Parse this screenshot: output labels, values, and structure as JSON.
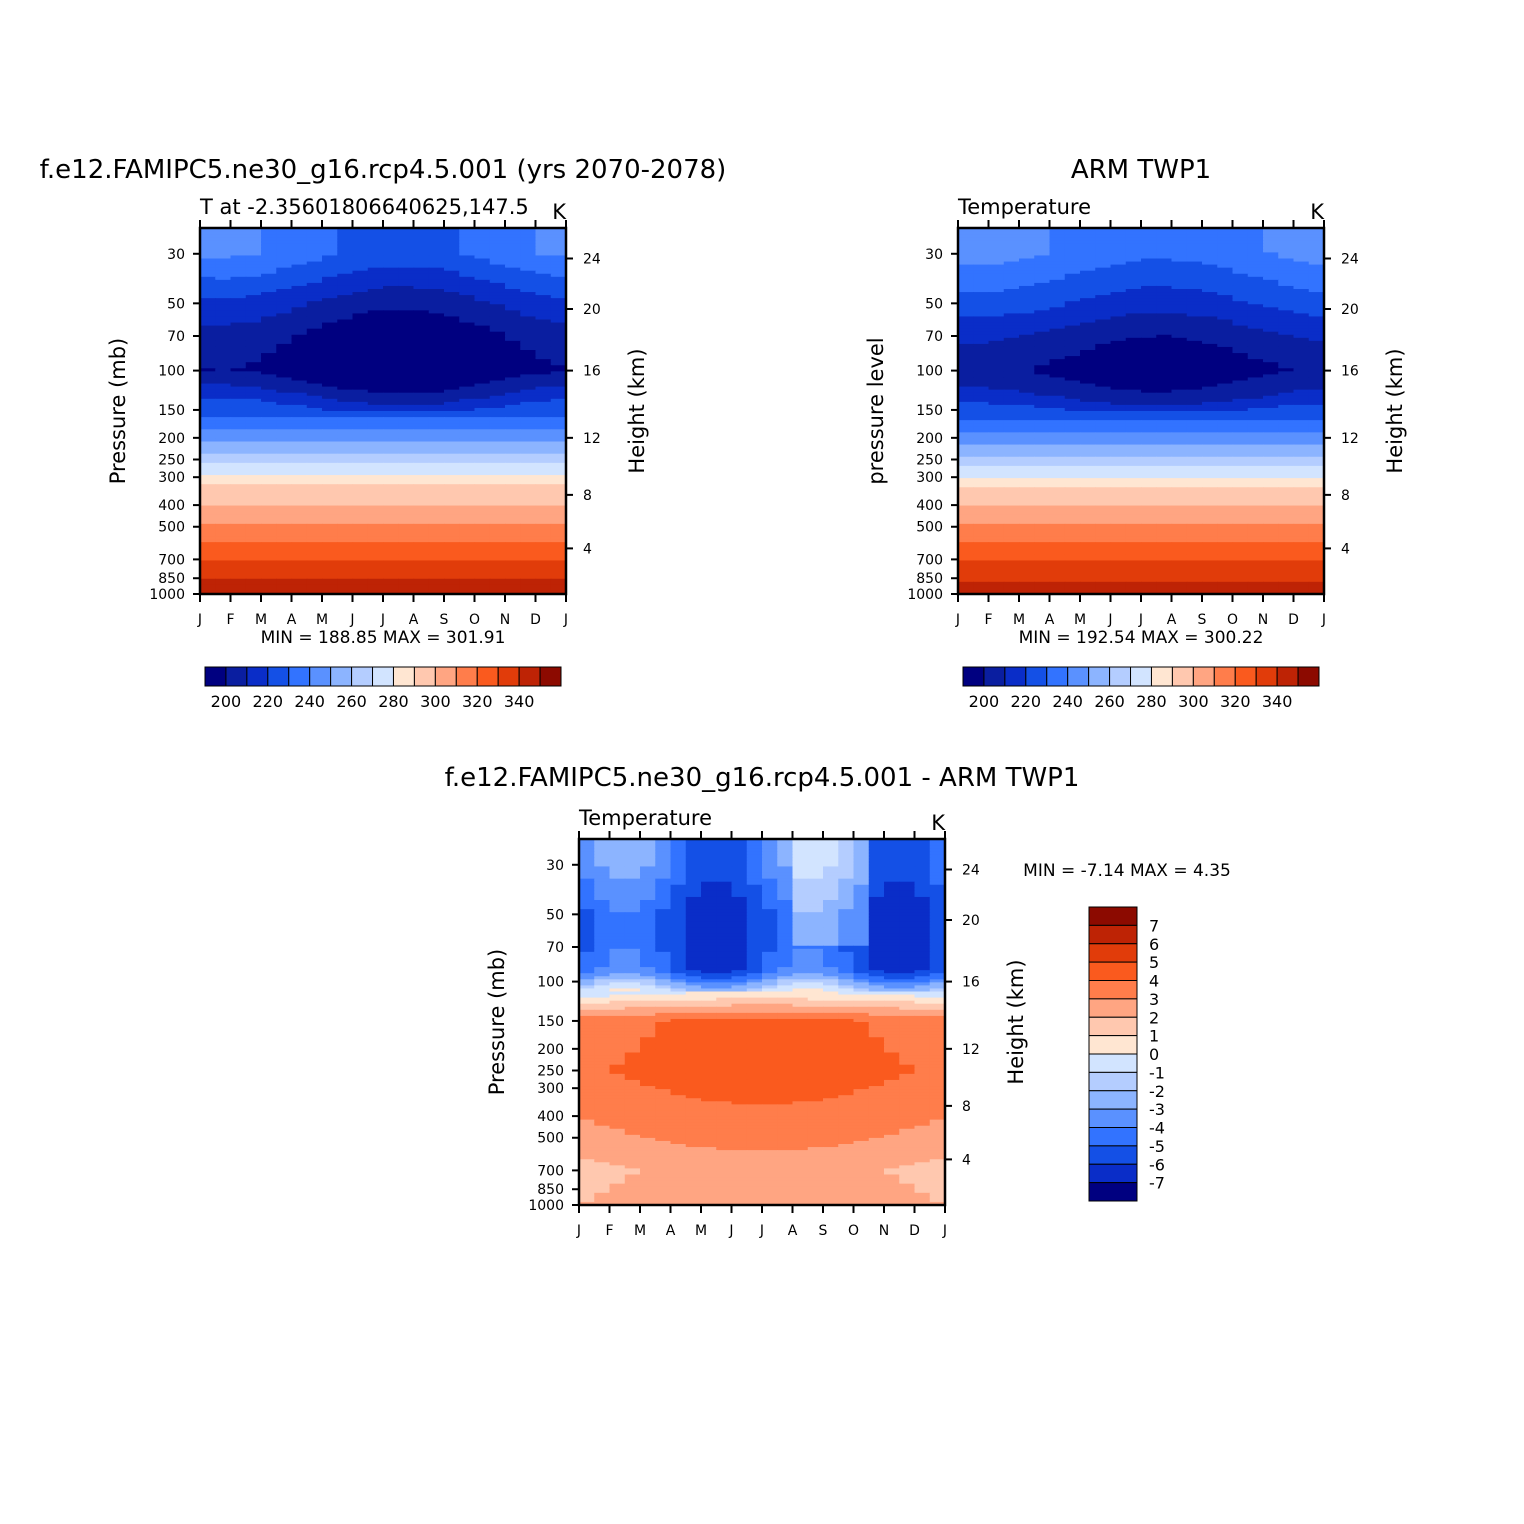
{
  "chart_data": [
    {
      "type": "heatmap",
      "title": "f.e12.FAMIPC5.ne30_g16.rcp4.5.001 (yrs 2070-2078)",
      "subtitle_left": "T at -2.35601806640625,147.5",
      "subtitle_right": "K",
      "ylabel": "Pressure (mb)",
      "ylabel_right": "Height (km)",
      "x": [
        "J",
        "F",
        "M",
        "A",
        "M",
        "J",
        "J",
        "A",
        "S",
        "O",
        "N",
        "D",
        "J"
      ],
      "y_ticks": [
        "30",
        "50",
        "70",
        "100",
        "150",
        "200",
        "250",
        "300",
        "400",
        "500",
        "700",
        "850",
        "1000"
      ],
      "y_right_ticks": [
        "24",
        "20",
        "16",
        "12",
        "8",
        "4"
      ],
      "stats": "MIN =  188.85 MAX =  301.91",
      "colorbar": {
        "orientation": "horizontal",
        "labels": [
          "200",
          "220",
          "240",
          "260",
          "280",
          "300",
          "320",
          "340"
        ]
      },
      "profile": [
        {
          "p": 30,
          "v": 212
        },
        {
          "p": 50,
          "v": 200
        },
        {
          "p": 70,
          "v": 194
        },
        {
          "p": 100,
          "v": 191
        },
        {
          "p": 130,
          "v": 200
        },
        {
          "p": 150,
          "v": 206
        },
        {
          "p": 200,
          "v": 219
        },
        {
          "p": 250,
          "v": 228
        },
        {
          "p": 300,
          "v": 236
        },
        {
          "p": 400,
          "v": 250
        },
        {
          "p": 500,
          "v": 262
        },
        {
          "p": 700,
          "v": 279
        },
        {
          "p": 850,
          "v": 289
        },
        {
          "p": 1000,
          "v": 297
        }
      ]
    },
    {
      "type": "heatmap",
      "title": "ARM TWP1",
      "subtitle_left": "Temperature",
      "subtitle_right": "K",
      "ylabel": "pressure level",
      "ylabel_right": "Height (km)",
      "x": [
        "J",
        "F",
        "M",
        "A",
        "M",
        "J",
        "J",
        "A",
        "S",
        "O",
        "N",
        "D",
        "J"
      ],
      "y_ticks": [
        "30",
        "50",
        "70",
        "100",
        "150",
        "200",
        "250",
        "300",
        "400",
        "500",
        "700",
        "850",
        "1000"
      ],
      "y_right_ticks": [
        "24",
        "20",
        "16",
        "12",
        "8",
        "4"
      ],
      "stats": "MIN =  192.54 MAX =  300.22",
      "colorbar": {
        "orientation": "horizontal",
        "labels": [
          "200",
          "220",
          "240",
          "260",
          "280",
          "300",
          "320",
          "340"
        ]
      },
      "profile": [
        {
          "p": 30,
          "v": 214
        },
        {
          "p": 50,
          "v": 205
        },
        {
          "p": 70,
          "v": 198
        },
        {
          "p": 100,
          "v": 193
        },
        {
          "p": 130,
          "v": 199
        },
        {
          "p": 150,
          "v": 205
        },
        {
          "p": 200,
          "v": 217
        },
        {
          "p": 250,
          "v": 226
        },
        {
          "p": 300,
          "v": 235
        },
        {
          "p": 400,
          "v": 249
        },
        {
          "p": 500,
          "v": 261
        },
        {
          "p": 700,
          "v": 279
        },
        {
          "p": 850,
          "v": 288
        },
        {
          "p": 1000,
          "v": 296
        }
      ]
    },
    {
      "type": "heatmap",
      "title": "f.e12.FAMIPC5.ne30_g16.rcp4.5.001 - ARM TWP1",
      "subtitle_left": "Temperature",
      "subtitle_right": "K",
      "ylabel": "Pressure (mb)",
      "ylabel_right": "Height (km)",
      "x": [
        "J",
        "F",
        "M",
        "A",
        "M",
        "J",
        "J",
        "A",
        "S",
        "O",
        "N",
        "D",
        "J"
      ],
      "y_ticks": [
        "30",
        "50",
        "70",
        "100",
        "150",
        "200",
        "250",
        "300",
        "400",
        "500",
        "700",
        "850",
        "1000"
      ],
      "y_right_ticks": [
        "24",
        "20",
        "16",
        "12",
        "8",
        "4"
      ],
      "stats": "MIN =   -7.14 MAX =     4.35",
      "colorbar": {
        "orientation": "vertical",
        "labels": [
          "7",
          "6",
          "5",
          "4",
          "3",
          "2",
          "1",
          "0",
          "-1",
          "-2",
          "-3",
          "-4",
          "-5",
          "-6",
          "-7"
        ]
      },
      "profile": [
        {
          "p": 30,
          "v": -4
        },
        {
          "p": 50,
          "v": -5.5
        },
        {
          "p": 70,
          "v": -5.5
        },
        {
          "p": 90,
          "v": -5
        },
        {
          "p": 110,
          "v": -1
        },
        {
          "p": 130,
          "v": 1.5
        },
        {
          "p": 150,
          "v": 3.5
        },
        {
          "p": 200,
          "v": 3.6
        },
        {
          "p": 250,
          "v": 3.8
        },
        {
          "p": 300,
          "v": 3.5
        },
        {
          "p": 400,
          "v": 3
        },
        {
          "p": 500,
          "v": 2.6
        },
        {
          "p": 700,
          "v": 1.6
        },
        {
          "p": 850,
          "v": 1.8
        },
        {
          "p": 1000,
          "v": 2
        }
      ]
    }
  ],
  "colors": {
    "blues": [
      "#000080",
      "#0a1ea0",
      "#0a2dc8",
      "#1450e6",
      "#3273ff",
      "#5a91ff",
      "#8cb4ff",
      "#b4cdff",
      "#d2e4ff"
    ],
    "reds": [
      "#ffe6d2",
      "#ffc8af",
      "#ffa582",
      "#ff7d4b",
      "#fa5a1e",
      "#e13c0a",
      "#be2305",
      "#8c0a00"
    ]
  }
}
